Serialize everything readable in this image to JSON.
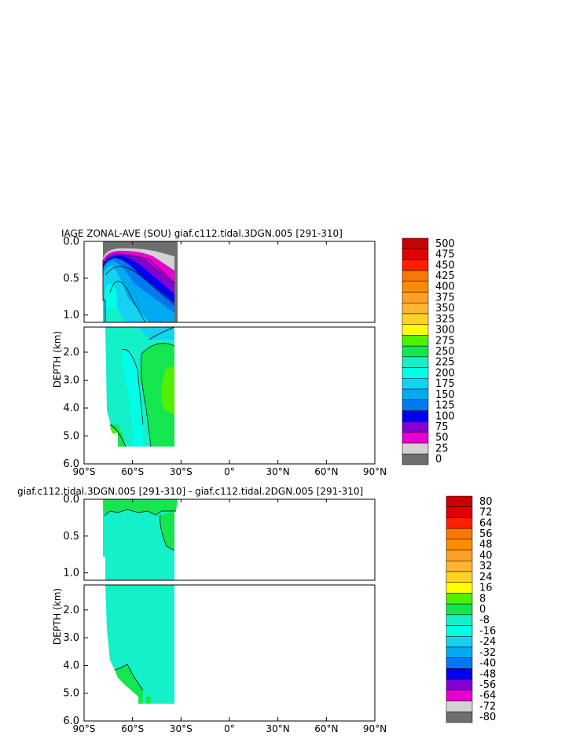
{
  "chart_data": [
    {
      "type": "heatmap",
      "title": "IAGE ZONAL-AVE (SOU) giaf.c112.tidal.3DGN.005 [291-310]",
      "ylabel": "DEPTH (km)",
      "x_ticks": [
        "90°S",
        "60°S",
        "30°S",
        "0°",
        "30°N",
        "60°N",
        "90°N"
      ],
      "y_ticks_top": [
        "0.0",
        "0.5",
        "1.0"
      ],
      "y_ticks_bottom": [
        "2.0",
        "3.0",
        "4.0",
        "5.0",
        "6.0"
      ],
      "xlim": [
        -90,
        90
      ],
      "ylim": [
        0,
        6
      ],
      "colorbar_labels": [
        "500",
        "475",
        "450",
        "425",
        "400",
        "375",
        "350",
        "325",
        "300",
        "275",
        "250",
        "225",
        "200",
        "175",
        "150",
        "125",
        "100",
        "75",
        "50",
        "25",
        "0"
      ],
      "colorbar_colors": [
        "#c80000",
        "#e10000",
        "#ff1e00",
        "#f57800",
        "#ff8c00",
        "#ffa028",
        "#ffb432",
        "#ffd228",
        "#ffff00",
        "#50f000",
        "#14e650",
        "#14f0c8",
        "#00ffe6",
        "#14d2f0",
        "#00aaf0",
        "#0078f0",
        "#0000f0",
        "#8200d2",
        "#e600d2",
        "#d2d2d2",
        "#6e6e6e"
      ]
    },
    {
      "type": "heatmap",
      "title": "giaf.c112.tidal.3DGN.005 [291-310] - giaf.c112.tidal.2DGN.005 [291-310]",
      "ylabel": "DEPTH (km)",
      "x_ticks": [
        "90°S",
        "60°S",
        "30°S",
        "0°",
        "30°N",
        "60°N",
        "90°N"
      ],
      "y_ticks_top": [
        "0.0",
        "0.5",
        "1.0"
      ],
      "y_ticks_bottom": [
        "2.0",
        "3.0",
        "4.0",
        "5.0",
        "6.0"
      ],
      "xlim": [
        -90,
        90
      ],
      "ylim": [
        0,
        6
      ],
      "colorbar_labels": [
        "80",
        "72",
        "64",
        "56",
        "48",
        "40",
        "32",
        "24",
        "16",
        "8",
        "0",
        "-8",
        "-16",
        "-24",
        "-32",
        "-40",
        "-48",
        "-56",
        "-64",
        "-72",
        "-80"
      ],
      "colorbar_colors": [
        "#c80000",
        "#e10000",
        "#ff1e00",
        "#f57800",
        "#ff8c00",
        "#ffa028",
        "#ffb432",
        "#ffd228",
        "#ffff00",
        "#50f000",
        "#14e650",
        "#14f0c8",
        "#00ffe6",
        "#14d2f0",
        "#00aaf0",
        "#0078f0",
        "#0000f0",
        "#8200d2",
        "#e600d2",
        "#d2d2d2",
        "#6e6e6e"
      ]
    }
  ]
}
